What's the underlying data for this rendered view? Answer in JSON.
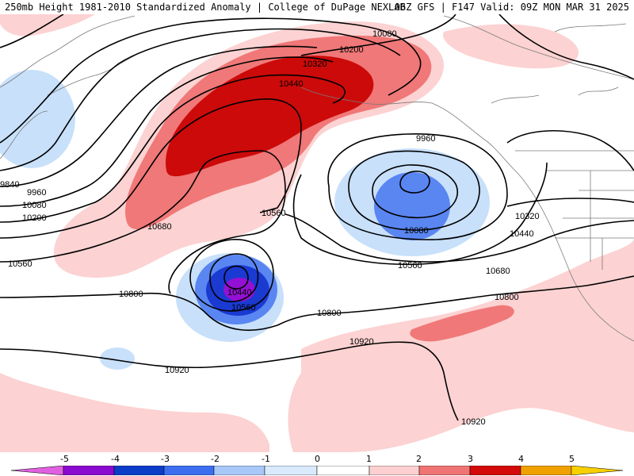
{
  "header": {
    "title_left": "250mb Height 1981-2010 Standardized Anomaly | College of DuPage NEXLAB",
    "title_right": "06Z GFS | F147 Valid: 09Z MON MAR 31 2025"
  },
  "contour_labels": [
    "10080",
    "10200",
    "10320",
    "10440",
    "9960",
    "9840",
    "9960",
    "10080",
    "10200",
    "10560",
    "10560",
    "10680",
    "10800",
    "10440",
    "10560",
    "10080",
    "10320",
    "10440",
    "10560",
    "10680",
    "10800",
    "10800",
    "10920",
    "10920",
    "10920"
  ],
  "colorbar": {
    "ticks": [
      "-5",
      "-4",
      "-3",
      "-2",
      "-1",
      "0",
      "1",
      "2",
      "3",
      "4",
      "5"
    ],
    "colors": [
      "#e060e0",
      "#8a0ad0",
      "#0a3cc8",
      "#3c6ef0",
      "#a8c8f8",
      "#d8eafc",
      "#ffffff",
      "#fcd0d0",
      "#f07474",
      "#d40a0a",
      "#a00000",
      "#f0a000",
      "#f8d000"
    ]
  },
  "legend_colors": {
    "light_blue": "#c8e0fa",
    "mid_blue": "#5a86f2",
    "dark_blue": "#1a3ad2",
    "purple": "#9410d4",
    "light_red": "#fcd2d2",
    "mid_red": "#f07878",
    "dark_red": "#cc0a0a",
    "land_line": "#7a7a7a"
  }
}
